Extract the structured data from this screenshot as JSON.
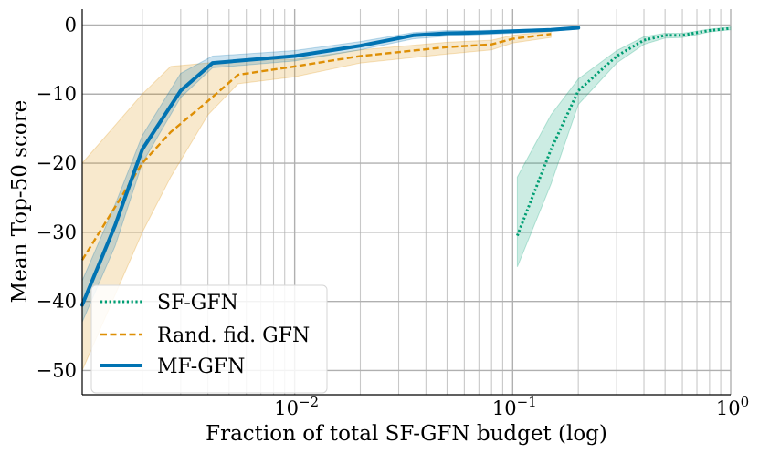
{
  "chart_data": {
    "type": "line",
    "xscale": "log",
    "xlabel": "Fraction of total SF-GFN budget (log)",
    "ylabel": "Mean Top-50 score",
    "xlim": [
      0.00106,
      1.0
    ],
    "ylim": [
      -53.5,
      2.3
    ],
    "grid": true,
    "legend_position": "lower-left",
    "x_major_ticks": [
      {
        "value": 0.01,
        "base": "10",
        "exp": "−2"
      },
      {
        "value": 0.1,
        "base": "10",
        "exp": "−1"
      },
      {
        "value": 1,
        "base": "10",
        "exp": "0"
      }
    ],
    "y_ticks": [
      {
        "value": 0,
        "label": "0"
      },
      {
        "value": -10,
        "label": "−10"
      },
      {
        "value": -20,
        "label": "−20"
      },
      {
        "value": -30,
        "label": "−30"
      },
      {
        "value": -40,
        "label": "−40"
      },
      {
        "value": -50,
        "label": "−50"
      }
    ],
    "series": [
      {
        "name": "SF-GFN",
        "color": "#009e73",
        "style": "dotted",
        "x": [
          0.105,
          0.15,
          0.2,
          0.3,
          0.4,
          0.5,
          0.6,
          0.7,
          0.8,
          1.0
        ],
        "y": [
          -30.5,
          -18,
          -9.5,
          -4.5,
          -2.2,
          -1.5,
          -1.5,
          -1.1,
          -0.8,
          -0.5
        ],
        "lower": [
          -35,
          -23,
          -11.5,
          -5.5,
          -2.8,
          -1.9,
          -1.8,
          -1.4,
          -1.0,
          -0.7
        ],
        "upper": [
          -22,
          -13,
          -7.8,
          -3.7,
          -1.7,
          -1.2,
          -1.2,
          -0.9,
          -0.6,
          -0.3
        ]
      },
      {
        "name": "Rand. fid. GFN",
        "color": "#de8f05",
        "style": "dashed",
        "x": [
          0.00106,
          0.002,
          0.0027,
          0.004,
          0.0055,
          0.01,
          0.02,
          0.05,
          0.08,
          0.1,
          0.15
        ],
        "y": [
          -34,
          -20,
          -15.5,
          -11,
          -7.2,
          -6,
          -4.5,
          -3.2,
          -2.8,
          -2,
          -1.3
        ],
        "lower": [
          -50,
          -30,
          -22,
          -13,
          -8.5,
          -7.5,
          -5.5,
          -4.2,
          -3.6,
          -2.6,
          -1.8
        ],
        "upper": [
          -20,
          -10,
          -6,
          -5.5,
          -5,
          -5,
          -3.6,
          -2.5,
          -2.2,
          -1.5,
          -0.9
        ]
      },
      {
        "name": "MF-GFN",
        "color": "#0173b2",
        "style": "solid",
        "x": [
          0.00106,
          0.0015,
          0.002,
          0.003,
          0.0042,
          0.01,
          0.02,
          0.035,
          0.05,
          0.07,
          0.1,
          0.15,
          0.2
        ],
        "y": [
          -40.5,
          -29,
          -18,
          -9.5,
          -5.5,
          -4.5,
          -3,
          -1.5,
          -1.2,
          -1.1,
          -0.9,
          -0.7,
          -0.4
        ],
        "lower": [
          -43,
          -32,
          -20,
          -10.5,
          -6.2,
          -5.2,
          -3.6,
          -2.0,
          -1.6,
          -1.4,
          -1.2,
          -0.9,
          -0.6
        ],
        "upper": [
          -37,
          -26,
          -16,
          -7,
          -4.5,
          -3.7,
          -2.4,
          -1.1,
          -0.8,
          -0.8,
          -0.7,
          -0.5,
          -0.2
        ]
      }
    ]
  }
}
